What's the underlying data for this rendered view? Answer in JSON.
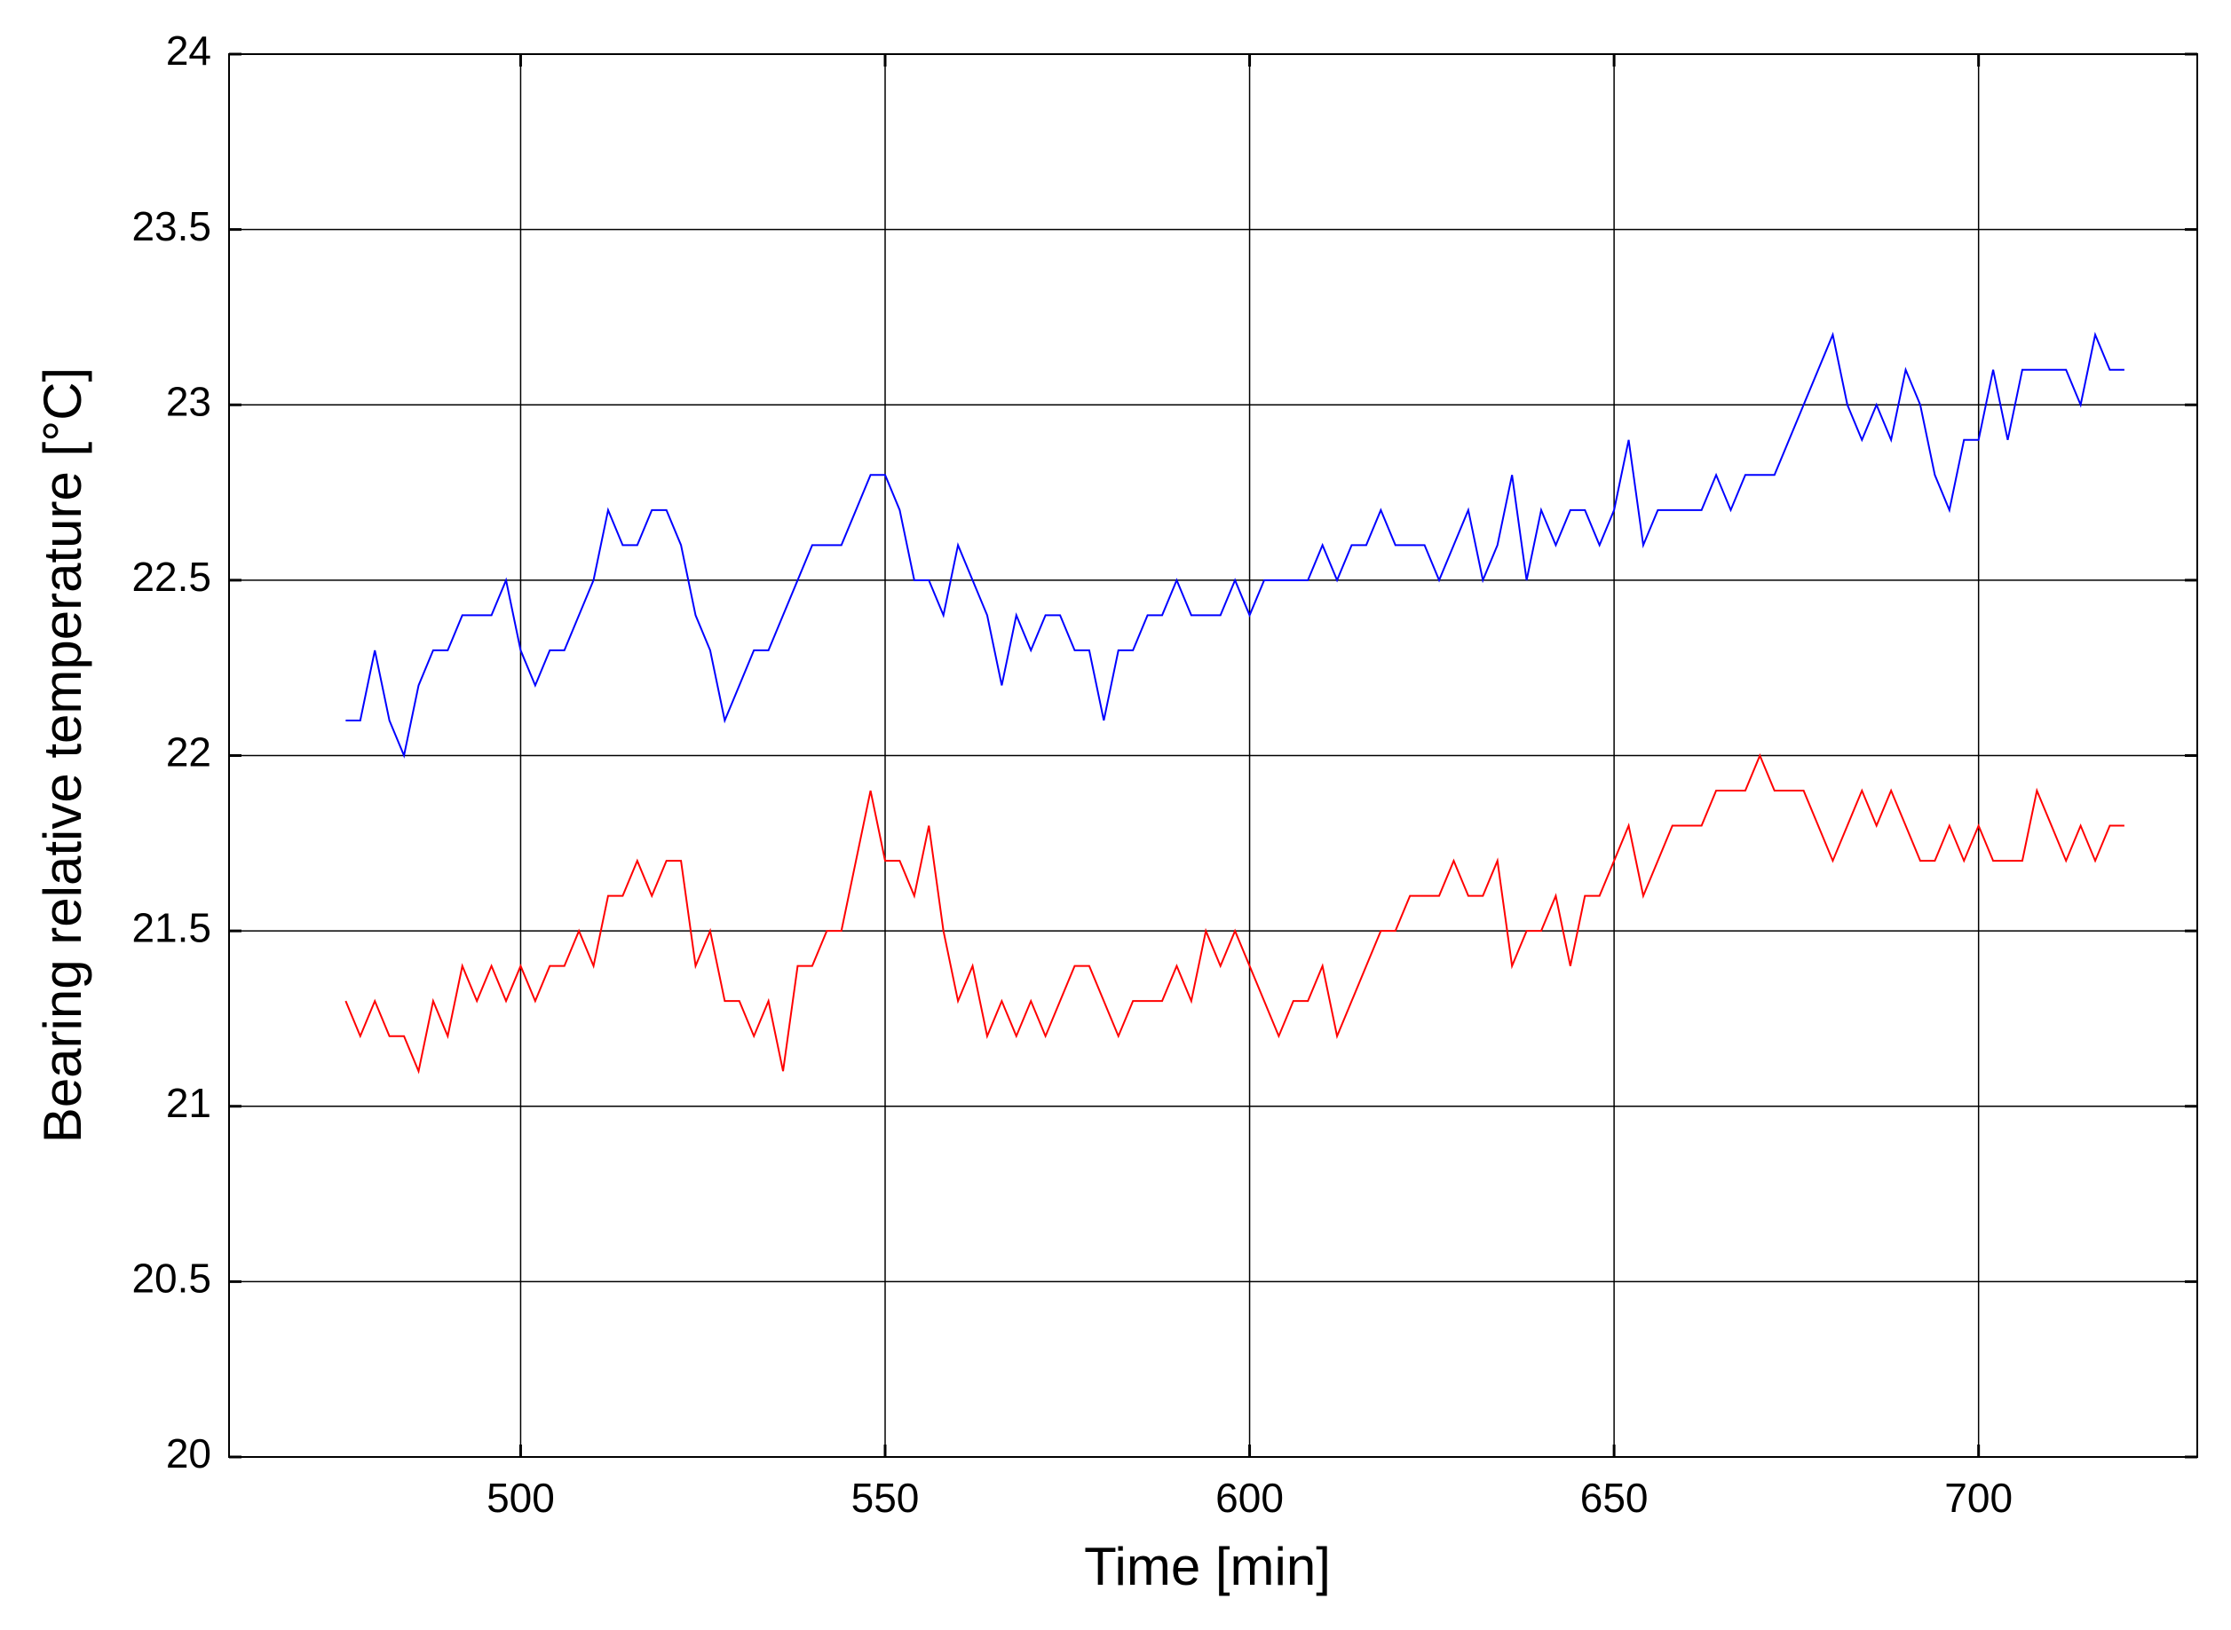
{
  "chart_data": {
    "type": "line",
    "xlabel": "Time [min]",
    "ylabel": "Bearing relative temperature [°C]",
    "xlim": [
      460,
      730
    ],
    "ylim": [
      20,
      24
    ],
    "xticks": [
      500,
      550,
      600,
      650,
      700
    ],
    "yticks": [
      20,
      20.5,
      21,
      21.5,
      22,
      22.5,
      23,
      23.5,
      24
    ],
    "grid": true,
    "x": [
      476,
      478,
      480,
      482,
      484,
      486,
      488,
      490,
      492,
      494,
      496,
      498,
      500,
      502,
      504,
      506,
      508,
      510,
      512,
      514,
      516,
      518,
      520,
      522,
      524,
      526,
      528,
      530,
      532,
      534,
      536,
      538,
      540,
      542,
      544,
      546,
      548,
      550,
      552,
      554,
      556,
      558,
      560,
      562,
      564,
      566,
      568,
      570,
      572,
      574,
      576,
      578,
      580,
      582,
      584,
      586,
      588,
      590,
      592,
      594,
      596,
      598,
      600,
      602,
      604,
      606,
      608,
      610,
      612,
      614,
      616,
      618,
      620,
      622,
      624,
      626,
      628,
      630,
      632,
      634,
      636,
      638,
      640,
      642,
      644,
      646,
      648,
      650,
      652,
      654,
      656,
      658,
      660,
      662,
      664,
      666,
      668,
      670,
      672,
      674,
      676,
      678,
      680,
      682,
      684,
      686,
      688,
      690,
      692,
      694,
      696,
      698,
      700,
      702,
      704,
      706,
      708,
      710,
      712,
      714,
      716,
      718,
      720
    ],
    "series": [
      {
        "color": "#0000ff",
        "values": [
          22.1,
          22.1,
          22.3,
          22.1,
          22.0,
          22.2,
          22.3,
          22.3,
          22.4,
          22.4,
          22.4,
          22.5,
          22.3,
          22.2,
          22.3,
          22.3,
          22.4,
          22.5,
          22.7,
          22.6,
          22.6,
          22.7,
          22.7,
          22.6,
          22.4,
          22.3,
          22.1,
          22.2,
          22.3,
          22.3,
          22.4,
          22.5,
          22.6,
          22.6,
          22.6,
          22.7,
          22.8,
          22.8,
          22.7,
          22.5,
          22.5,
          22.4,
          22.6,
          22.5,
          22.4,
          22.2,
          22.4,
          22.3,
          22.4,
          22.4,
          22.3,
          22.3,
          22.1,
          22.3,
          22.3,
          22.4,
          22.4,
          22.5,
          22.4,
          22.4,
          22.4,
          22.5,
          22.4,
          22.5,
          22.5,
          22.5,
          22.5,
          22.6,
          22.5,
          22.6,
          22.6,
          22.7,
          22.6,
          22.6,
          22.6,
          22.5,
          22.6,
          22.7,
          22.5,
          22.6,
          22.8,
          22.5,
          22.7,
          22.6,
          22.7,
          22.7,
          22.6,
          22.7,
          22.9,
          22.6,
          22.7,
          22.7,
          22.7,
          22.7,
          22.8,
          22.7,
          22.8,
          22.8,
          22.8,
          22.9,
          23.0,
          23.1,
          23.2,
          23.0,
          22.9,
          23.0,
          22.9,
          23.1,
          23.0,
          22.8,
          22.7,
          22.9,
          22.9,
          23.1,
          22.9,
          23.1,
          23.1,
          23.1,
          23.1,
          23.0,
          23.2,
          23.1,
          23.1
        ]
      },
      {
        "color": "#ff0000",
        "values": [
          21.3,
          21.2,
          21.3,
          21.2,
          21.2,
          21.1,
          21.3,
          21.2,
          21.4,
          21.3,
          21.4,
          21.3,
          21.4,
          21.3,
          21.4,
          21.4,
          21.5,
          21.4,
          21.6,
          21.6,
          21.7,
          21.6,
          21.7,
          21.7,
          21.4,
          21.5,
          21.3,
          21.3,
          21.2,
          21.3,
          21.1,
          21.4,
          21.4,
          21.5,
          21.5,
          21.7,
          21.9,
          21.7,
          21.7,
          21.6,
          21.8,
          21.5,
          21.3,
          21.4,
          21.2,
          21.3,
          21.2,
          21.3,
          21.2,
          21.3,
          21.4,
          21.4,
          21.3,
          21.2,
          21.3,
          21.3,
          21.3,
          21.4,
          21.3,
          21.5,
          21.4,
          21.5,
          21.4,
          21.3,
          21.2,
          21.3,
          21.3,
          21.4,
          21.2,
          21.3,
          21.4,
          21.5,
          21.5,
          21.6,
          21.6,
          21.6,
          21.7,
          21.6,
          21.6,
          21.7,
          21.4,
          21.5,
          21.5,
          21.6,
          21.4,
          21.6,
          21.6,
          21.7,
          21.8,
          21.6,
          21.7,
          21.8,
          21.8,
          21.8,
          21.9,
          21.9,
          21.9,
          22.0,
          21.9,
          21.9,
          21.9,
          21.8,
          21.7,
          21.8,
          21.9,
          21.8,
          21.9,
          21.8,
          21.7,
          21.7,
          21.8,
          21.7,
          21.8,
          21.7,
          21.7,
          21.7,
          21.9,
          21.8,
          21.7,
          21.8,
          21.7,
          21.8,
          21.8
        ]
      }
    ]
  }
}
